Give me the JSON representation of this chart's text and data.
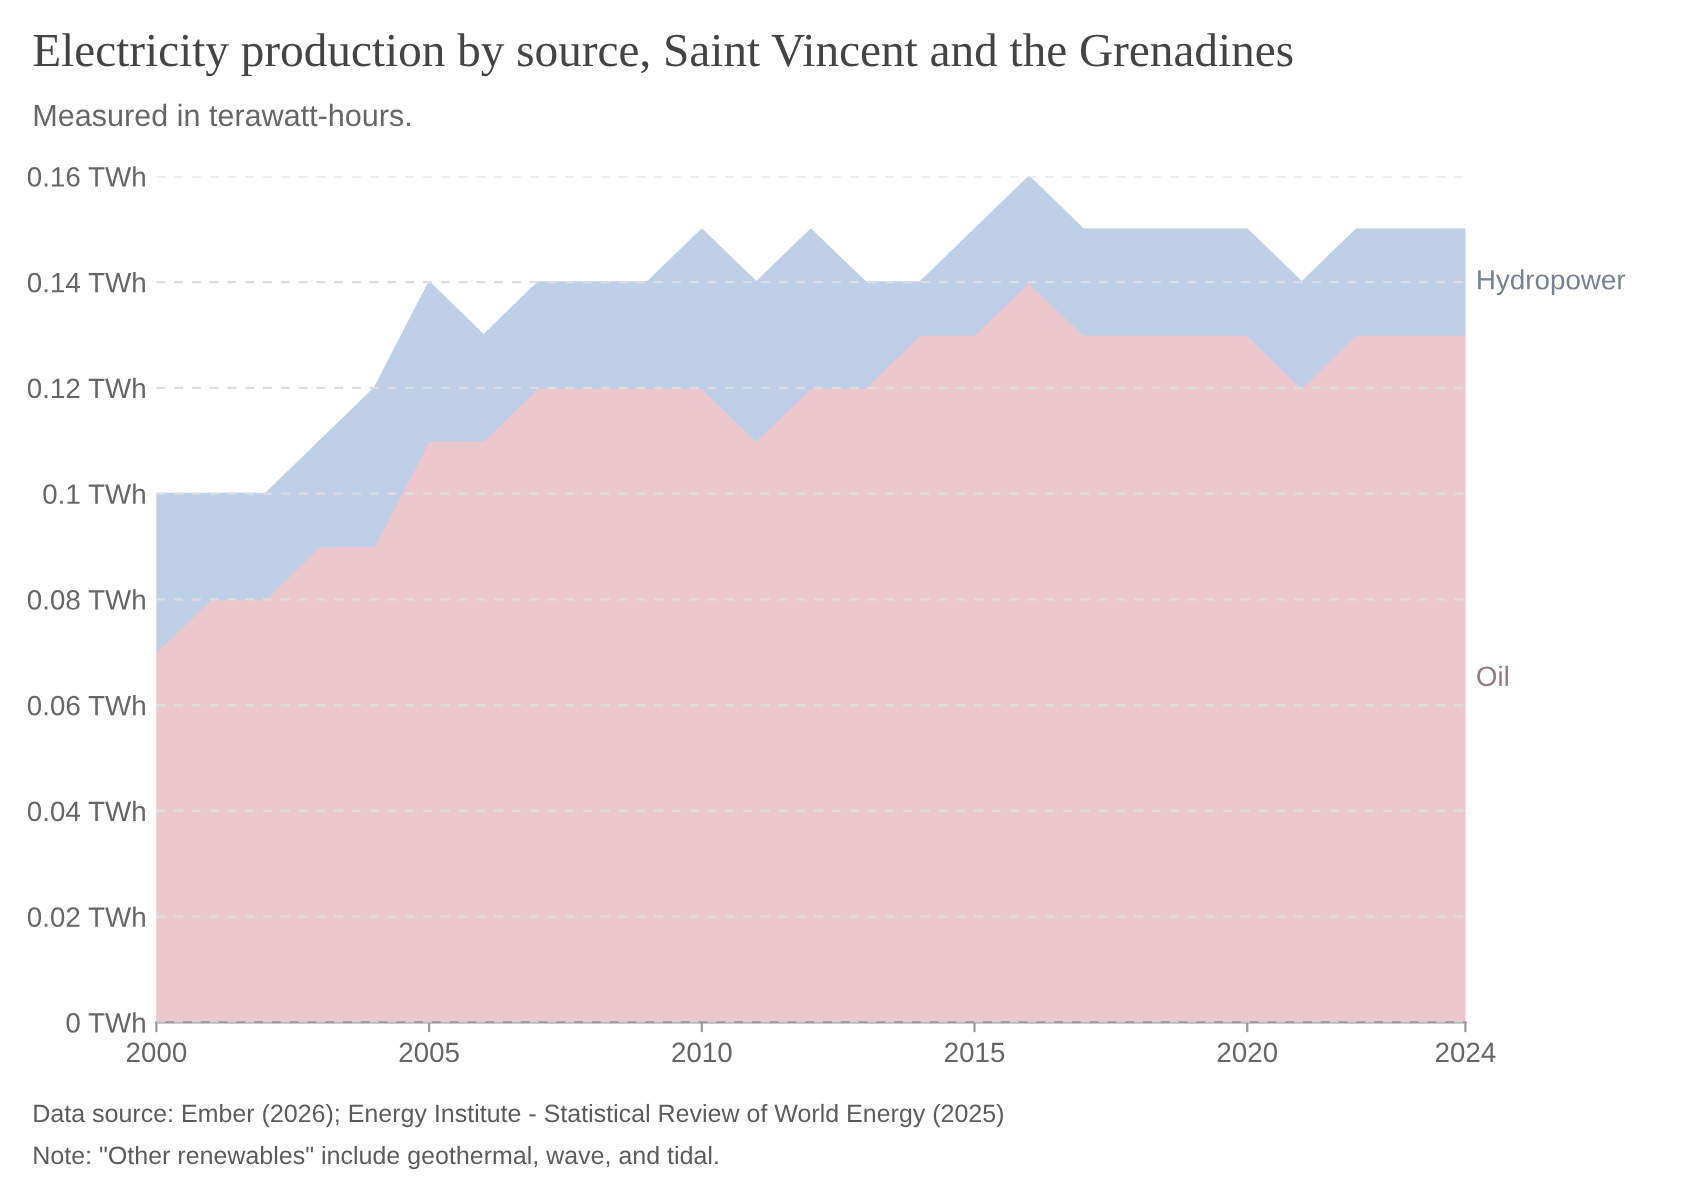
{
  "chart_data": {
    "type": "area",
    "stacked": true,
    "title": "Electricity production by source, Saint Vincent and the Grenadines",
    "subtitle": "Measured in terawatt-hours.",
    "x": [
      2000,
      2001,
      2002,
      2003,
      2004,
      2005,
      2006,
      2007,
      2008,
      2009,
      2010,
      2011,
      2012,
      2013,
      2014,
      2015,
      2016,
      2017,
      2018,
      2019,
      2020,
      2021,
      2022,
      2023,
      2024
    ],
    "series": [
      {
        "name": "Oil",
        "color": "#ecc8ce",
        "values": [
          0.07,
          0.08,
          0.08,
          0.09,
          0.09,
          0.11,
          0.11,
          0.12,
          0.12,
          0.12,
          0.12,
          0.11,
          0.12,
          0.12,
          0.13,
          0.13,
          0.14,
          0.13,
          0.13,
          0.13,
          0.13,
          0.12,
          0.13,
          0.13,
          0.13
        ]
      },
      {
        "name": "Hydropower",
        "color": "#bed0e7",
        "values": [
          0.03,
          0.02,
          0.02,
          0.02,
          0.03,
          0.03,
          0.02,
          0.02,
          0.02,
          0.02,
          0.03,
          0.03,
          0.03,
          0.02,
          0.01,
          0.02,
          0.02,
          0.02,
          0.02,
          0.02,
          0.02,
          0.02,
          0.02,
          0.02,
          0.02
        ]
      }
    ],
    "xlim": [
      2000,
      2024
    ],
    "xticks": [
      2000,
      2005,
      2010,
      2015,
      2020,
      2024
    ],
    "ylim": [
      0,
      0.16
    ],
    "yticks": [
      {
        "value": 0,
        "label": "0 TWh"
      },
      {
        "value": 0.02,
        "label": "0.02 TWh"
      },
      {
        "value": 0.04,
        "label": "0.04 TWh"
      },
      {
        "value": 0.06,
        "label": "0.06 TWh"
      },
      {
        "value": 0.08,
        "label": "0.08 TWh"
      },
      {
        "value": 0.1,
        "label": "0.1 TWh"
      },
      {
        "value": 0.12,
        "label": "0.12 TWh"
      },
      {
        "value": 0.14,
        "label": "0.14 TWh"
      },
      {
        "value": 0.16,
        "label": "0.16 TWh"
      }
    ],
    "grid": "y",
    "annotations": [
      "Data source: Ember (2026); Energy Institute - Statistical Review of World Energy (2025)",
      "Note: \"Other renewables\" include geothermal, wave, and tidal."
    ]
  }
}
